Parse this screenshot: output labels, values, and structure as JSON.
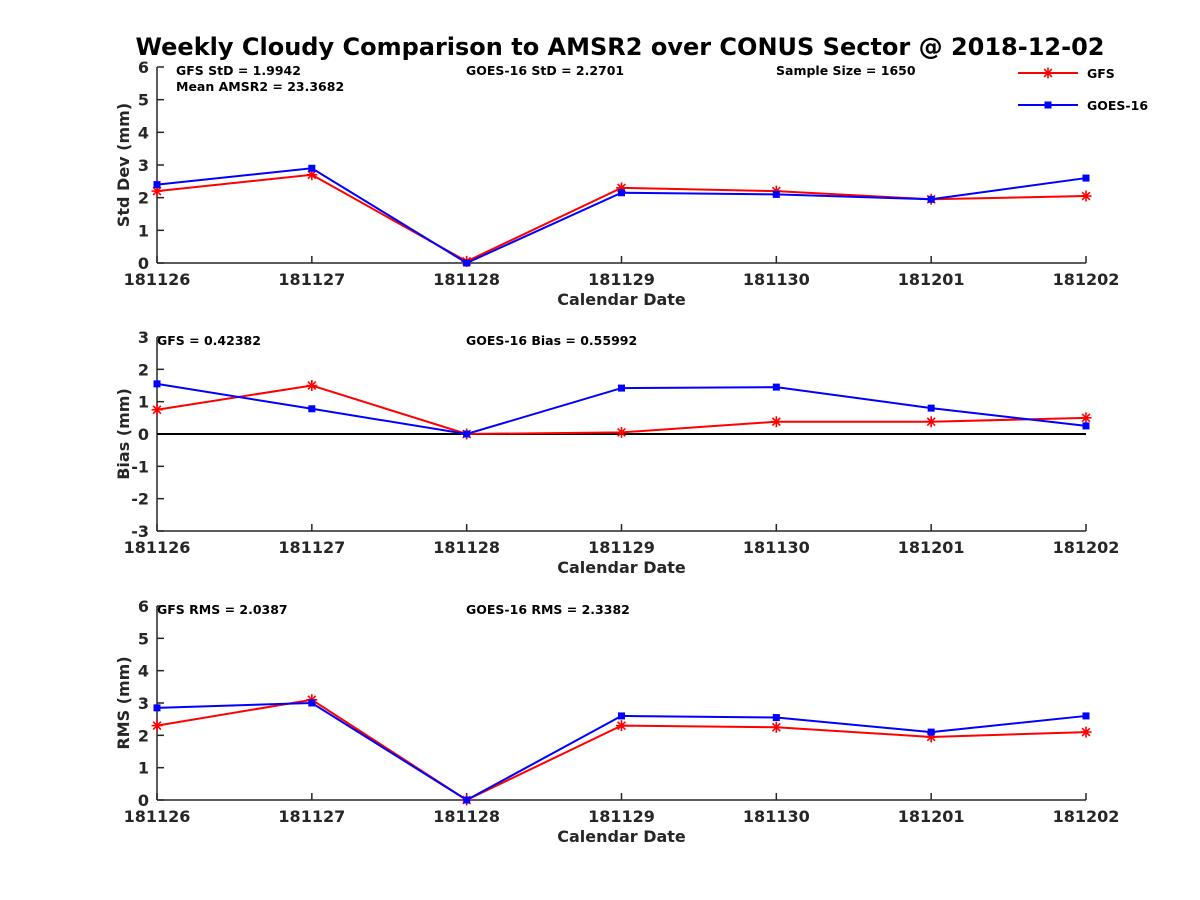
{
  "chart_data": [
    {
      "type": "line",
      "id": "std",
      "title": "Weekly Cloudy Comparison to AMSR2 over CONUS Sector @ 2018-12-02",
      "xlabel": "Calendar Date",
      "ylabel": "Std Dev (mm)",
      "categories": [
        "181126",
        "181127",
        "181128",
        "181129",
        "181130",
        "181201",
        "181202"
      ],
      "ylim": [
        0,
        6
      ],
      "yticks": [
        "0",
        "1",
        "2",
        "3",
        "4",
        "5",
        "6"
      ],
      "series": [
        {
          "name": "GFS",
          "color": "#ff0000",
          "marker": "asterisk",
          "values": [
            2.2,
            2.7,
            0.05,
            2.3,
            2.2,
            1.95,
            2.05
          ]
        },
        {
          "name": "GOES-16",
          "color": "#0000ff",
          "marker": "square",
          "values": [
            2.4,
            2.9,
            0.0,
            2.15,
            2.1,
            1.95,
            2.6
          ]
        }
      ],
      "annotations": [
        "GFS StD = 1.9942",
        "Mean AMSR2 = 23.3682",
        "GOES-16 StD = 2.2701",
        "Sample Size = 1650"
      ],
      "legend": {
        "placement": "top-right",
        "entries": [
          "GFS",
          "GOES-16"
        ]
      }
    },
    {
      "type": "line",
      "id": "bias",
      "xlabel": "Calendar Date",
      "ylabel": "Bias (mm)",
      "categories": [
        "181126",
        "181127",
        "181128",
        "181129",
        "181130",
        "181201",
        "181202"
      ],
      "ylim": [
        -3,
        3
      ],
      "yticks": [
        "-3",
        "-2",
        "-1",
        "0",
        "1",
        "2",
        "3"
      ],
      "zero_line": true,
      "series": [
        {
          "name": "GFS",
          "color": "#ff0000",
          "marker": "asterisk",
          "values": [
            0.75,
            1.5,
            0.0,
            0.05,
            0.38,
            0.38,
            0.5
          ]
        },
        {
          "name": "GOES-16",
          "color": "#0000ff",
          "marker": "square",
          "values": [
            1.55,
            0.78,
            0.0,
            1.42,
            1.45,
            0.8,
            0.25
          ]
        }
      ],
      "annotations": [
        "GFS = 0.42382",
        "GOES-16 Bias  = 0.55992"
      ]
    },
    {
      "type": "line",
      "id": "rms",
      "xlabel": "Calendar Date",
      "ylabel": "RMS (mm)",
      "categories": [
        "181126",
        "181127",
        "181128",
        "181129",
        "181130",
        "181201",
        "181202"
      ],
      "ylim": [
        0,
        6
      ],
      "yticks": [
        "0",
        "1",
        "2",
        "3",
        "4",
        "5",
        "6"
      ],
      "series": [
        {
          "name": "GFS",
          "color": "#ff0000",
          "marker": "asterisk",
          "values": [
            2.3,
            3.1,
            0.0,
            2.3,
            2.25,
            1.95,
            2.1
          ]
        },
        {
          "name": "GOES-16",
          "color": "#0000ff",
          "marker": "square",
          "values": [
            2.85,
            3.0,
            0.0,
            2.6,
            2.55,
            2.1,
            2.6
          ]
        }
      ],
      "annotations": [
        "GFS RMS = 2.0387",
        "GOES-16 RMS = 2.3382"
      ]
    }
  ]
}
